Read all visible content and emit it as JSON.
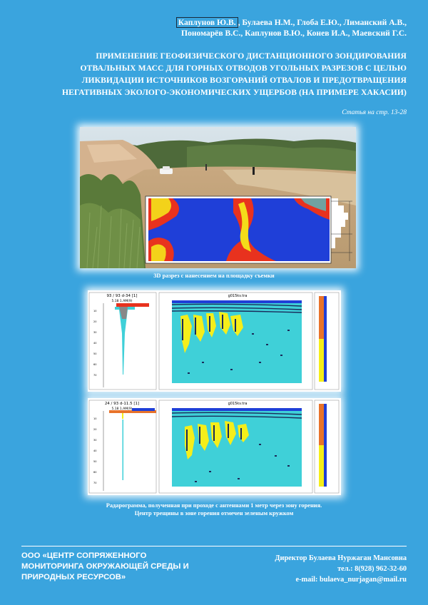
{
  "authors": {
    "first": "Каплунов Ю.В.",
    "line1_rest": ", Булаева Н.М., Глоба Е.Ю., Лиманский А.В.,",
    "line2": "Пономарёв В.С., Каплунов В.Ю., Конев И.А., Маевский Г.С."
  },
  "title_lines": [
    "ПРИМЕНЕНИЕ ГЕОФИЗИЧЕСКОГО ДИСТАНЦИОННОГО ЗОНДИРОВАНИЯ",
    "ОТВАЛЬНЫХ МАСС ДЛЯ ГОРНЫХ ОТВОДОВ УГОЛЬНЫХ РАЗРЕЗОВ С ЦЕЛЬЮ",
    "ЛИКВИДАЦИИ ИСТОЧНИКОВ ВОЗГОРАНИЙ ОТВАЛОВ И ПРЕДОТВРАЩЕНИЯ",
    "НЕГАТИВНЫХ ЭКОЛОГО-ЭКОНОМИЧЕСКИХ УЩЕРБОВ (НА ПРИМЕРЕ ХАКАСИИ)"
  ],
  "article_ref": "Статья на стр. 13-28",
  "figure1": {
    "caption": "3D разрез с нанесением на площадку съемки"
  },
  "figure2": {
    "header_left": "93 / 93  d-34  [1]",
    "header_left2": "5.18 1.AM(9)",
    "header_center": "g015kv.tra"
  },
  "figure3": {
    "header_left": "24 / 93  d-11.5  [1]",
    "header_left2": "5.18 1.AM(9)",
    "header_center": "g015kv.tra"
  },
  "caption2": {
    "line1": "Радарограмма, полученная при проходе с антеннами 1 метр через зону горения.",
    "line2": "Центр трещины в зоне горения отмечен зеленым кружком"
  },
  "footer": {
    "org_lines": [
      "ООО «ЦЕНТР СОПРЯЖЕННОГО",
      "МОНИТОРИНГА ОКРУЖАЮЩЕЙ СРЕДЫ И",
      "ПРИРОДНЫХ РЕСУРСОВ»"
    ],
    "director": "Директор Булаева Нуржаган Мансовна",
    "phone": "тел.: 8(928) 962-32-60",
    "email": "e-mail: bulaeva_nurjagan@mail.ru"
  },
  "colors": {
    "background": "#3aa4de",
    "radar_blue": "#1f3fd8",
    "radar_red": "#e8321e",
    "radar_yellow": "#f5ee1a",
    "radar_cyan": "#3fd0d8"
  }
}
